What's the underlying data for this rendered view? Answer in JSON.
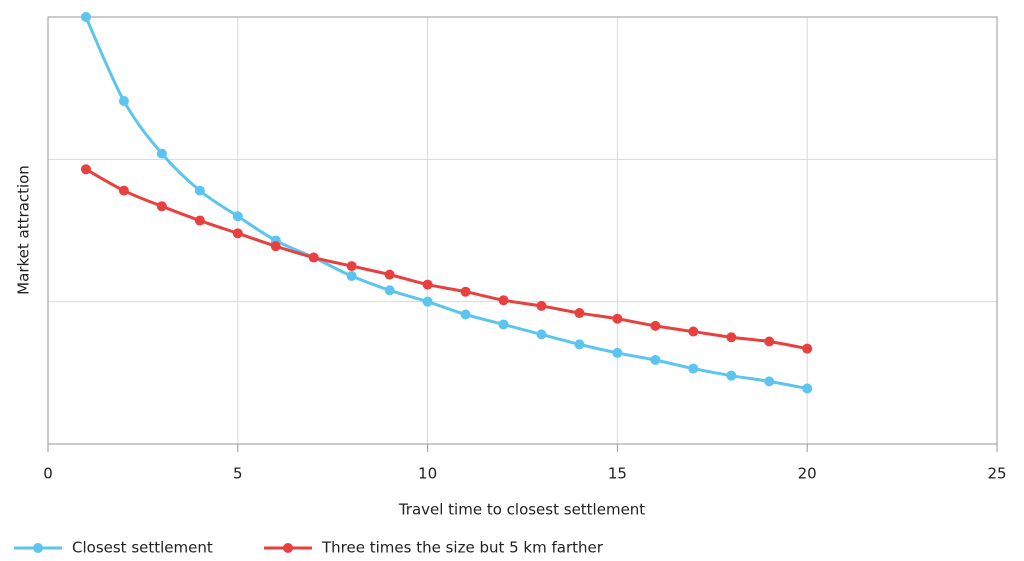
{
  "chart_data": {
    "type": "line",
    "x_label": "Travel time to closest settlement",
    "y_label": "Market attraction",
    "x": [
      1,
      2,
      3,
      4,
      5,
      6,
      7,
      8,
      9,
      10,
      11,
      12,
      13,
      14,
      15,
      16,
      17,
      18,
      19,
      20
    ],
    "series": [
      {
        "name": "Closest settlement",
        "color": "#5bc5f0",
        "values": [
          3.0,
          2.41,
          2.04,
          1.78,
          1.6,
          1.43,
          1.31,
          1.18,
          1.08,
          1.0,
          0.91,
          0.84,
          0.77,
          0.7,
          0.64,
          0.59,
          0.53,
          0.48,
          0.44,
          0.39
        ]
      },
      {
        "name": "Three times the size but 5 km farther",
        "color": "#e8403f",
        "values": [
          1.93,
          1.78,
          1.67,
          1.57,
          1.48,
          1.39,
          1.31,
          1.25,
          1.19,
          1.12,
          1.07,
          1.01,
          0.97,
          0.92,
          0.88,
          0.83,
          0.79,
          0.75,
          0.72,
          0.67
        ]
      }
    ],
    "xlim": [
      0,
      25
    ],
    "xticks": [
      0,
      5,
      10,
      15,
      20,
      25
    ],
    "ylim": [
      0,
      3
    ],
    "yticks": [
      0,
      1,
      2,
      3
    ],
    "grid": true
  }
}
